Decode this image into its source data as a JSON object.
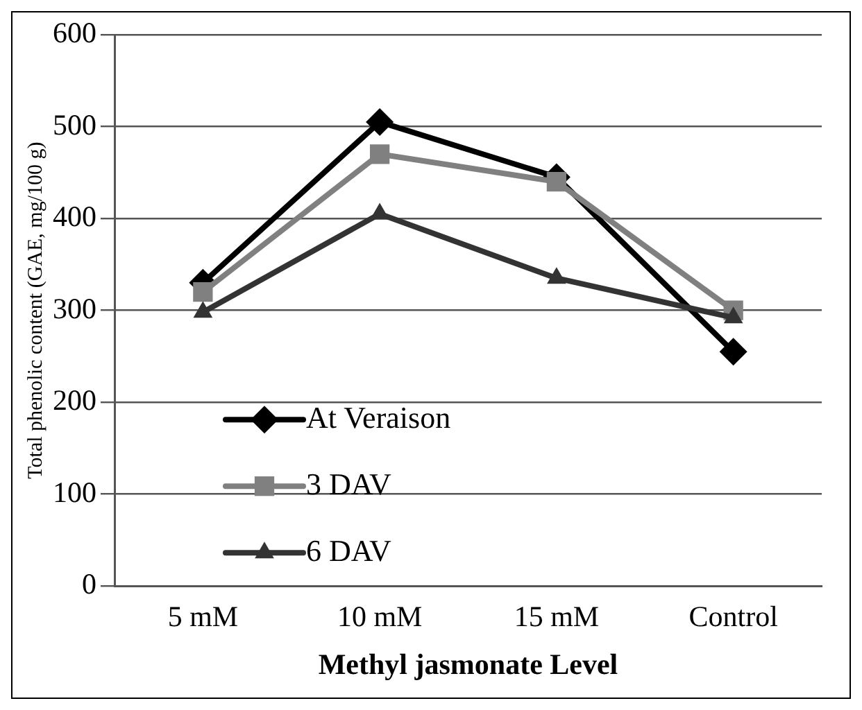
{
  "chart_data": {
    "type": "line",
    "xlabel": "Methyl jasmonate Level",
    "ylabel": "Total phenolic content (GAE, mg/100 g)",
    "categories": [
      "5 mM",
      "10 mM",
      "15 mM",
      "Control"
    ],
    "series": [
      {
        "name": "At Veraison",
        "color": "#000000",
        "marker": "diamond",
        "values": [
          330,
          505,
          445,
          255
        ]
      },
      {
        "name": "3 DAV",
        "color": "#808080",
        "marker": "square",
        "values": [
          320,
          470,
          440,
          300
        ]
      },
      {
        "name": "6 DAV",
        "color": "#333333",
        "marker": "triangle",
        "values": [
          298,
          405,
          335,
          292
        ]
      }
    ],
    "ylim": [
      0,
      600
    ],
    "yticks": [
      0,
      100,
      200,
      300,
      400,
      500,
      600
    ],
    "grid": "y",
    "legend": "bottom left"
  }
}
